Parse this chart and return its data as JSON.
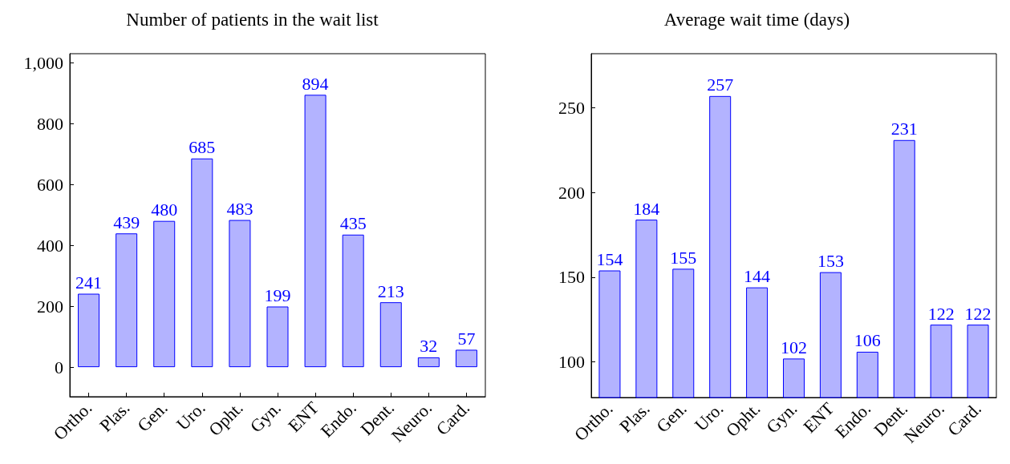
{
  "chart_data": [
    {
      "type": "bar",
      "title": "Number of patients in the wait list",
      "categories": [
        "Ortho.",
        "Plas.",
        "Gen.",
        "Uro.",
        "Opht.",
        "Gyn.",
        "ENT",
        "Endo.",
        "Dent.",
        "Neuro.",
        "Card."
      ],
      "values": [
        241,
        439,
        480,
        685,
        483,
        199,
        894,
        435,
        213,
        32,
        57
      ],
      "color": "#b3b3ff",
      "data_labels": true,
      "ylim": [
        -97,
        1029
      ],
      "yticks": [
        0,
        200,
        400,
        600,
        800,
        {
          "value": 1000,
          "label": "1,000"
        }
      ]
    },
    {
      "type": "bar",
      "title": "Average wait time (days)",
      "categories": [
        "Ortho.",
        "Plas.",
        "Gen.",
        "Uro.",
        "Opht.",
        "Gyn.",
        "ENT",
        "Endo.",
        "Dent.",
        "Neuro.",
        "Card."
      ],
      "values": [
        154,
        184,
        155,
        257,
        144,
        102,
        153,
        106,
        231,
        122,
        122
      ],
      "color": "#b3b3ff",
      "data_labels": true,
      "ylim": [
        79,
        282
      ],
      "yticks": [
        100,
        150,
        200,
        250
      ]
    }
  ]
}
